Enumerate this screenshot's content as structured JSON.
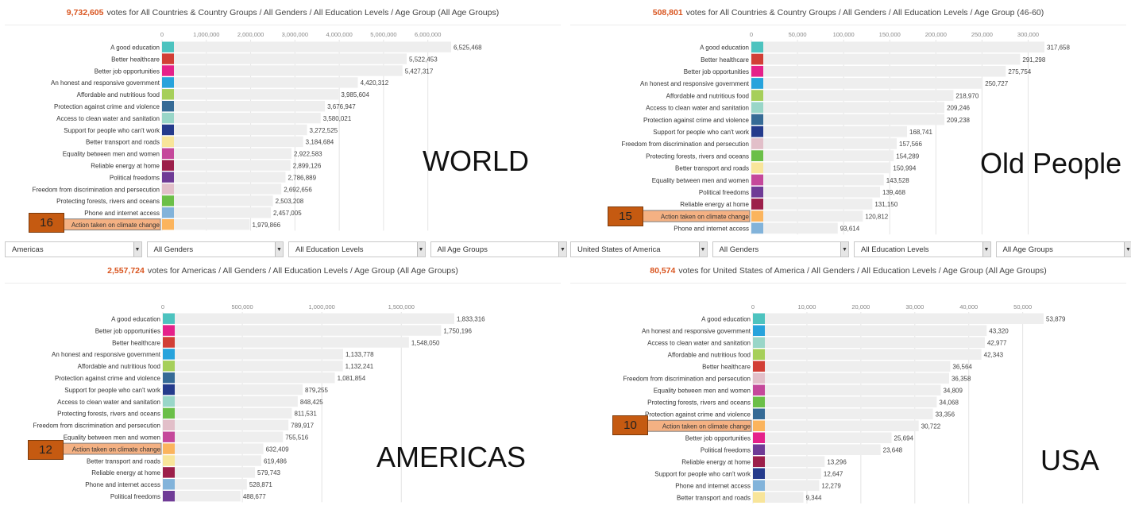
{
  "colors": {
    "A good education": "#4dc3bf",
    "Better healthcare": "#d23f36",
    "Better job opportunities": "#e5218a",
    "An honest and responsive government": "#27a3dc",
    "Affordable and nutritious food": "#a6cf5a",
    "Protection against crime and violence": "#366b96",
    "Access to clean water and sanitation": "#99d6c8",
    "Support for people who can't work": "#253b8c",
    "Better transport and roads": "#f8e59a",
    "Equality between men and women": "#c5489b",
    "Reliable energy at home": "#9c1f4a",
    "Political freedoms": "#6f3b96",
    "Freedom from discrimination and persecution": "#e2bfc9",
    "Protecting forests, rivers and oceans": "#6bbf48",
    "Phone and internet access": "#82b3da",
    "Action taken on climate change": "#fbb45d"
  },
  "panels": [
    {
      "id": "world",
      "count": "9,732,605",
      "title": "votes for All Countries & Country Groups / All Genders / All Education Levels / Age Group (All Age Groups)",
      "big_label": "WORLD",
      "rank": "16",
      "filters": [
        "Americas",
        "All Genders",
        "All Education Levels",
        "All Age Groups"
      ],
      "chart_data": {
        "type": "bar",
        "orientation": "horizontal",
        "xlim": [
          0,
          6525468
        ],
        "ticks": [
          "0",
          "1,000,000",
          "2,000,000",
          "3,000,000",
          "4,000,000",
          "5,000,000",
          "6,000,000"
        ],
        "tick_values": [
          0,
          1000000,
          2000000,
          3000000,
          4000000,
          5000000,
          6000000
        ],
        "highlight": "Action taken on climate change",
        "categories": [
          "A good education",
          "Better healthcare",
          "Better job opportunities",
          "An honest and responsive government",
          "Affordable and nutritious food",
          "Protection against crime and violence",
          "Access to clean water and sanitation",
          "Support for people who can't work",
          "Better transport and roads",
          "Equality between men and women",
          "Reliable energy at home",
          "Political freedoms",
          "Freedom from discrimination and persecution",
          "Protecting forests, rivers and oceans",
          "Phone and internet access",
          "Action taken on climate change"
        ],
        "values": [
          6525468,
          5522453,
          5427317,
          4420312,
          3985604,
          3676947,
          3580021,
          3272525,
          3184684,
          2922583,
          2899126,
          2786889,
          2692656,
          2503208,
          2457005,
          1979866
        ],
        "value_labels": [
          "6,525,468",
          "5,522,453",
          "5,427,317",
          "4,420,312",
          "3,985,604",
          "3,676,947",
          "3,580,021",
          "3,272,525",
          "3,184,684",
          "2,922,583",
          "2,899,126",
          "2,786,889",
          "2,692,656",
          "2,503,208",
          "2,457,005",
          "1,979,866"
        ]
      }
    },
    {
      "id": "old-people",
      "count": "508,801",
      "title": "votes for All Countries & Country Groups / All Genders / All Education Levels / Age Group (46-60)",
      "big_label": "Old People",
      "rank": "15",
      "filters": [
        "United States of America",
        "All Genders",
        "All Education Levels",
        "All Age Groups"
      ],
      "chart_data": {
        "type": "bar",
        "orientation": "horizontal",
        "xlim": [
          0,
          317658
        ],
        "ticks": [
          "0",
          "50,000",
          "100,000",
          "150,000",
          "200,000",
          "250,000",
          "300,000"
        ],
        "tick_values": [
          0,
          50000,
          100000,
          150000,
          200000,
          250000,
          300000
        ],
        "highlight": "Action taken on climate change",
        "categories": [
          "A good education",
          "Better healthcare",
          "Better job opportunities",
          "An honest and responsive government",
          "Affordable and nutritious food",
          "Access to clean water and sanitation",
          "Protection against crime and violence",
          "Support for people who can't work",
          "Freedom from discrimination and persecution",
          "Protecting forests, rivers and oceans",
          "Better transport and roads",
          "Equality between men and women",
          "Political freedoms",
          "Reliable energy at home",
          "Action taken on climate change",
          "Phone and internet access"
        ],
        "values": [
          317658,
          291298,
          275754,
          250727,
          218970,
          209246,
          209238,
          168741,
          157566,
          154289,
          150994,
          143528,
          139468,
          131150,
          120812,
          93614
        ],
        "value_labels": [
          "317,658",
          "291,298",
          "275,754",
          "250,727",
          "218,970",
          "209,246",
          "209,238",
          "168,741",
          "157,566",
          "154,289",
          "150,994",
          "143,528",
          "139,468",
          "131,150",
          "120,812",
          "93,614"
        ]
      }
    },
    {
      "id": "americas",
      "count": "2,557,724",
      "title": "votes for Americas / All Genders / All Education Levels / Age Group (All Age Groups)",
      "big_label": "AMERICAS",
      "rank": "12",
      "filters": [],
      "chart_data": {
        "type": "bar",
        "orientation": "horizontal",
        "xlim": [
          0,
          1833316
        ],
        "ticks": [
          "0",
          "500,000",
          "1,000,000",
          "1,500,000"
        ],
        "tick_values": [
          0,
          500000,
          1000000,
          1500000
        ],
        "highlight": "Action taken on climate change",
        "categories": [
          "A good education",
          "Better job opportunities",
          "Better healthcare",
          "An honest and responsive government",
          "Affordable and nutritious food",
          "Protection against crime and violence",
          "Support for people who can't work",
          "Access to clean water and sanitation",
          "Protecting forests, rivers and oceans",
          "Freedom from discrimination and persecution",
          "Equality between men and women",
          "Action taken on climate change",
          "Better transport and roads",
          "Reliable energy at home",
          "Phone and internet access",
          "Political freedoms"
        ],
        "values": [
          1833316,
          1750196,
          1548050,
          1133778,
          1132241,
          1081854,
          879255,
          848425,
          811531,
          789917,
          755516,
          632409,
          619486,
          579743,
          528871,
          488677
        ],
        "value_labels": [
          "1,833,316",
          "1,750,196",
          "1,548,050",
          "1,133,778",
          "1,132,241",
          "1,081,854",
          "879,255",
          "848,425",
          "811,531",
          "789,917",
          "755,516",
          "632,409",
          "619,486",
          "579,743",
          "528,871",
          "488,677"
        ]
      }
    },
    {
      "id": "usa",
      "count": "80,574",
      "title": "votes for United States of America / All Genders / All Education Levels / Age Group (All Age Groups)",
      "big_label": "USA",
      "rank": "10",
      "filters": [],
      "chart_data": {
        "type": "bar",
        "orientation": "horizontal",
        "xlim": [
          0,
          53879
        ],
        "ticks": [
          "0",
          "10,000",
          "20,000",
          "30,000",
          "40,000",
          "50,000"
        ],
        "tick_values": [
          0,
          10000,
          20000,
          30000,
          40000,
          50000
        ],
        "highlight": "Action taken on climate change",
        "categories": [
          "A good education",
          "An honest and responsive government",
          "Access to clean water and sanitation",
          "Affordable and nutritious food",
          "Better healthcare",
          "Freedom from discrimination and persecution",
          "Equality between men and women",
          "Protecting forests, rivers and oceans",
          "Protection against crime and violence",
          "Action taken on climate change",
          "Better job opportunities",
          "Political freedoms",
          "Reliable energy at home",
          "Support for people who can't work",
          "Phone and internet access",
          "Better transport and roads"
        ],
        "values": [
          53879,
          43320,
          42977,
          42343,
          36564,
          36358,
          34809,
          34068,
          33356,
          30722,
          25694,
          23648,
          13296,
          12647,
          12279,
          9344
        ],
        "value_labels": [
          "53,879",
          "43,320",
          "42,977",
          "42,343",
          "36,564",
          "36,358",
          "34,809",
          "34,068",
          "33,356",
          "30,722",
          "25,694",
          "23,648",
          "13,296",
          "12,647",
          "12,279",
          "9,344"
        ]
      }
    }
  ]
}
